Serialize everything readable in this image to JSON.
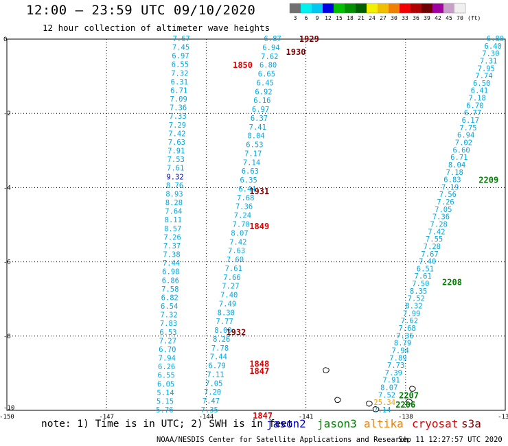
{
  "title": "12:00 – 23:59 UTC 09/10/2020",
  "subtitle": "12 hour collection of altimeter wave heights",
  "colorbar": {
    "unit": "(ft)",
    "bins": [
      {
        "label": "3",
        "color": "#707070"
      },
      {
        "label": "6",
        "color": "#00f0f0"
      },
      {
        "label": "9",
        "color": "#00c8f0"
      },
      {
        "label": "12",
        "color": "#0000e0"
      },
      {
        "label": "15",
        "color": "#00c000"
      },
      {
        "label": "18",
        "color": "#009000"
      },
      {
        "label": "21",
        "color": "#006000"
      },
      {
        "label": "24",
        "color": "#f0f000"
      },
      {
        "label": "27",
        "color": "#f0c000"
      },
      {
        "label": "30",
        "color": "#f08000"
      },
      {
        "label": "33",
        "color": "#f00000"
      },
      {
        "label": "36",
        "color": "#b00000"
      },
      {
        "label": "39",
        "color": "#700000"
      },
      {
        "label": "42",
        "color": "#a000a0"
      },
      {
        "label": "45",
        "color": "#c8a0c8"
      },
      {
        "label": "70",
        "color": "#f0f0f0"
      }
    ]
  },
  "axes": {
    "x_ticks": [
      "-150",
      "-147",
      "-144",
      "-141",
      "-138",
      "-135"
    ],
    "y_ticks": [
      "0",
      "-2",
      "-4",
      "-6",
      "-8",
      "-10"
    ],
    "lon_range": [
      -150,
      -135
    ],
    "lat_range": [
      -10,
      0
    ]
  },
  "colors": {
    "swh_cyan": "#00a8e0",
    "swh_blue": "#0000b0",
    "swh_orange": "#f0a000",
    "jason2": "#0000d0",
    "jason3": "#008000",
    "altika": "#f08000",
    "cryosat": "#e00000",
    "s3a": "#800000"
  },
  "tracks": [
    {
      "name": "t1",
      "lon0": -144.75,
      "lat0": 0,
      "lon1": -145.25,
      "lat1": -10,
      "values": [
        "7.67",
        "7.45",
        "6.97",
        "6.55",
        "7.32",
        "6.31",
        "6.71",
        "7.09",
        "7.36",
        "7.33",
        "7.29",
        "7.42",
        "7.63",
        "7.91",
        "7.53",
        "7.61",
        "9.32",
        "8.76",
        "8.93",
        "8.28",
        "7.64",
        "8.11",
        "8.57",
        "7.26",
        "7.37",
        "7.38",
        "7.44",
        "6.98",
        "6.86",
        "7.58",
        "6.82",
        "6.54",
        "7.32",
        "7.83",
        "6.53",
        "7.27",
        "6.70",
        "7.94",
        "6.26",
        "6.55",
        "6.05",
        "5.14",
        "5.15",
        "5.76"
      ]
    },
    {
      "name": "t2",
      "lon0": -142,
      "lat0": 0,
      "lon1": -143.9,
      "lat1": -10,
      "values": [
        "6.87",
        "6.94",
        "7.62",
        "6.80",
        "6.65",
        "6.45",
        "6.92",
        "6.16",
        "6.97",
        "6.37",
        "7.41",
        "8.04",
        "6.53",
        "7.17",
        "7.14",
        "6.63",
        "6.35",
        "6.44",
        "7.68",
        "7.36",
        "7.24",
        "7.70",
        "8.07",
        "7.42",
        "7.63",
        "7.60",
        "7.61",
        "7.66",
        "7.27",
        "7.40",
        "7.49",
        "8.30",
        "7.77",
        "8.00",
        "8.26",
        "7.78",
        "7.44",
        "6.79",
        "7.11",
        "7.05",
        "7.20",
        "7.47",
        "7.35"
      ]
    },
    {
      "name": "t3",
      "lon0": -135.3,
      "lat0": 0,
      "lon1": -138.7,
      "lat1": -10,
      "values": [
        "6.80",
        "6.40",
        "7.30",
        "7.31",
        "7.95",
        "7.74",
        "6.50",
        "6.41",
        "7.18",
        "6.70",
        "6.77",
        "6.17",
        "7.75",
        "6.94",
        "7.02",
        "6.60",
        "6.71",
        "8.04",
        "7.18",
        "6.83",
        "7.19",
        "7.56",
        "7.26",
        "7.05",
        "7.36",
        "7.28",
        "7.42",
        "7.55",
        "7.28",
        "7.67",
        "7.40",
        "6.51",
        "7.61",
        "7.50",
        "8.35",
        "7.52",
        "8.32",
        "7.99",
        "7.62",
        "7.68",
        "7.36",
        "8.79",
        "7.94",
        "7.89",
        "7.73",
        "7.39",
        "7.91",
        "8.07",
        "7.52",
        "25.34",
        "7.14"
      ]
    }
  ],
  "special_colors": {
    "9.32": "swh_blue",
    "25.34": "swh_orange"
  },
  "time_labels": [
    {
      "text": "1929",
      "lon": -141.2,
      "lat": 0,
      "color": "s3a"
    },
    {
      "text": "1930",
      "lon": -141.6,
      "lat": -0.35,
      "color": "s3a"
    },
    {
      "text": "1850",
      "lon": -143.2,
      "lat": -0.7,
      "color": "cryosat"
    },
    {
      "text": "1931",
      "lon": -142.7,
      "lat": -4.1,
      "color": "s3a"
    },
    {
      "text": "1849",
      "lon": -142.7,
      "lat": -5.05,
      "color": "cryosat"
    },
    {
      "text": "1932",
      "lon": -143.4,
      "lat": -7.9,
      "color": "s3a"
    },
    {
      "text": "1848",
      "lon": -142.7,
      "lat": -8.75,
      "color": "cryosat"
    },
    {
      "text": "1847",
      "lon": -142.7,
      "lat": -8.95,
      "color": "cryosat"
    },
    {
      "text": "1847",
      "lon": -142.6,
      "lat": -10.15,
      "color": "cryosat"
    },
    {
      "text": "2209",
      "lon": -135.8,
      "lat": -3.8,
      "color": "jason3"
    },
    {
      "text": "2208",
      "lon": -136.9,
      "lat": -6.55,
      "color": "jason3"
    },
    {
      "text": "2207",
      "lon": -138.2,
      "lat": -9.6,
      "color": "jason3"
    },
    {
      "text": "2206",
      "lon": -138.3,
      "lat": -9.85,
      "color": "jason3"
    }
  ],
  "islands": [
    {
      "lon": -140.4,
      "lat": -8.9
    },
    {
      "lon": -140.05,
      "lat": -9.7
    },
    {
      "lon": -139.1,
      "lat": -9.8
    },
    {
      "lon": -138.9,
      "lat": -9.95
    },
    {
      "lon": -137.8,
      "lat": -9.4
    },
    {
      "lon": -137.9,
      "lat": -9.75
    }
  ],
  "note": "note: 1) Time is in UTC; 2) SWH is in feet",
  "satellites": [
    {
      "name": "jason2",
      "color": "jason2"
    },
    {
      "name": "jason3",
      "color": "jason3"
    },
    {
      "name": "altika",
      "color": "altika"
    },
    {
      "name": "cryosat",
      "color": "cryosat"
    },
    {
      "name": "s3a",
      "color": "s3a"
    }
  ],
  "footer_left": "NOAA/NESDIS Center for Satellite Applications and Research",
  "footer_right": "Sep 11 12:27:57 UTC 2020"
}
